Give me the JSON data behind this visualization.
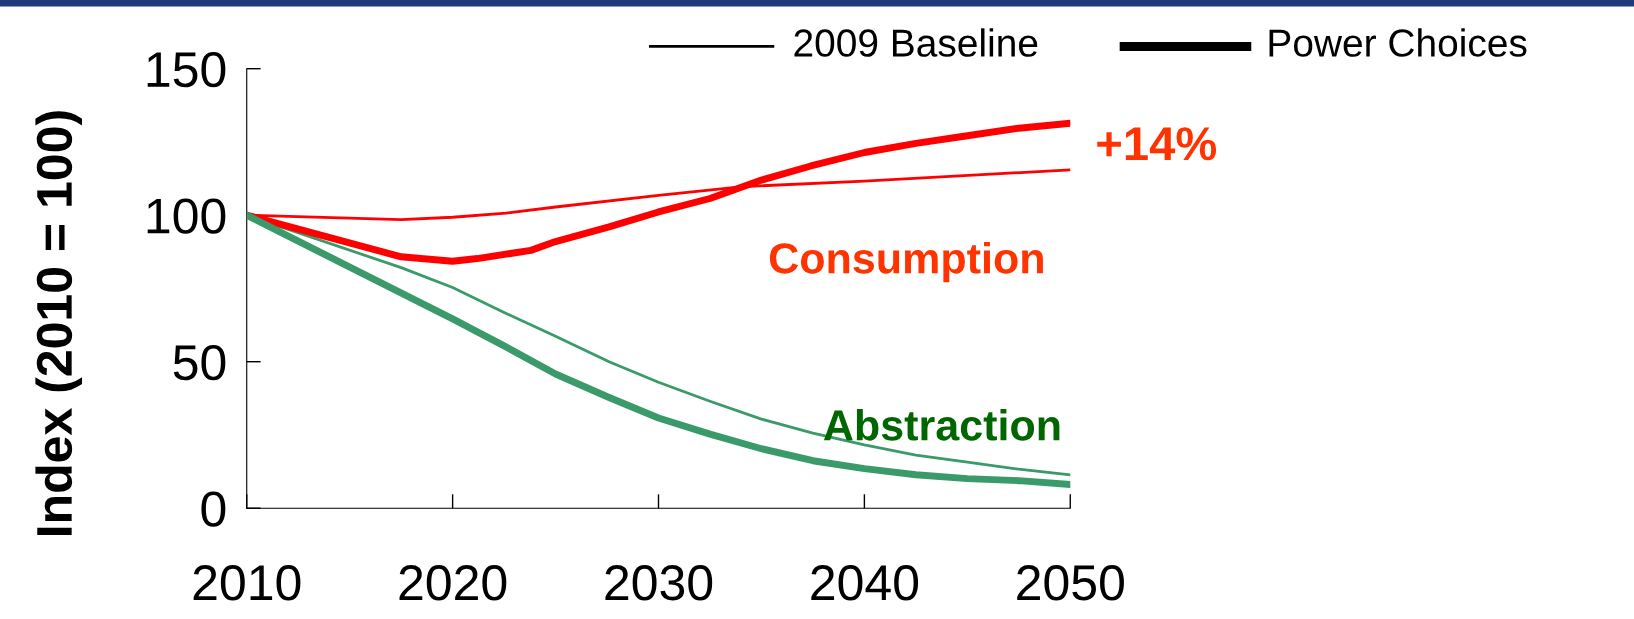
{
  "chart_data": {
    "type": "line",
    "ylabel": "Index (2010 = 100)",
    "xlim": [
      2010,
      2050
    ],
    "xticks": [
      2010,
      2020,
      2030,
      2040,
      2050
    ],
    "ylim": [
      0,
      150
    ],
    "yticks": [
      0,
      50,
      100,
      150
    ],
    "grid": false,
    "marker": "none",
    "line_style": "solid",
    "series": [
      {
        "color": "#ff0000",
        "x": [
          2010,
          2017.5,
          2020,
          2022.6,
          2025,
          2030,
          2034.2,
          2040,
          2050
        ],
        "values": [
          100,
          98.5,
          99.3,
          100.7,
          102.8,
          106.8,
          109.8,
          111.6,
          115.5
        ]
      },
      {
        "color": "#ff0000",
        "x": [
          2010,
          2017.5,
          2020,
          2021.2,
          2023.8,
          2025,
          2027.6,
          2030,
          2032.5,
          2035,
          2037.4,
          2040,
          2042.5,
          2045,
          2047.5,
          2050
        ],
        "values": [
          100,
          85.8,
          84.3,
          85.2,
          88,
          91,
          96,
          101.1,
          105.7,
          112,
          116.8,
          121.4,
          124.5,
          127.1,
          129.7,
          131.4
        ]
      },
      {
        "color": "#3a9a6a",
        "x": [
          2010,
          2017.5,
          2020,
          2022.5,
          2025,
          2027.6,
          2030,
          2032.5,
          2035,
          2037.5,
          2040,
          2042.5,
          2045,
          2047.5,
          2050
        ],
        "values": [
          100,
          82.1,
          75.3,
          66.8,
          58.7,
          50,
          43,
          36.5,
          30.4,
          25.6,
          21.6,
          18.1,
          15.7,
          13.3,
          11.4
        ]
      },
      {
        "color": "#3a9a6a",
        "x": [
          2010,
          2020,
          2022.5,
          2025,
          2027.6,
          2030,
          2032.5,
          2035,
          2037.5,
          2040,
          2042.5,
          2045,
          2047.5,
          2050
        ],
        "values": [
          100,
          64.6,
          55.4,
          45.8,
          37.8,
          30.8,
          25.3,
          20.3,
          16.2,
          13.5,
          11.4,
          10.1,
          9.4,
          8.1
        ]
      }
    ],
    "annotations": [
      {
        "text": "+14%",
        "x": 2050,
        "y": 115.5
      },
      "Consumption",
      "Abstraction",
      "2009 Baseline",
      "Power Choices"
    ]
  }
}
